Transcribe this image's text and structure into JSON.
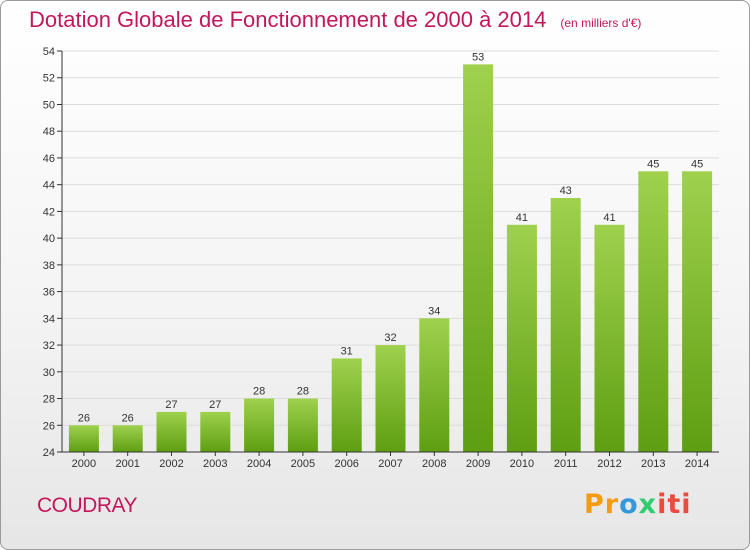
{
  "header": {
    "title": "Dotation Globale de Fonctionnement de 2000 à 2014",
    "unit": "(en milliers d'€)"
  },
  "footer": {
    "commune": "COUDRAY",
    "logo": {
      "p1": "Pr",
      "p2": "o",
      "p3": "x",
      "p4": "iti"
    }
  },
  "colors": {
    "bar_light": "#9fd14e",
    "bar_dark": "#5e9e12",
    "axis": "#333333",
    "grid": "#dddddd",
    "title": "#c2185b"
  },
  "chart_data": {
    "type": "bar",
    "title": "Dotation Globale de Fonctionnement de 2000 à 2014",
    "subtitle": "(en milliers d'€)",
    "xlabel": "",
    "ylabel": "",
    "categories": [
      "2000",
      "2001",
      "2002",
      "2003",
      "2004",
      "2005",
      "2006",
      "2007",
      "2008",
      "2009",
      "2010",
      "2011",
      "2012",
      "2013",
      "2014"
    ],
    "values": [
      26,
      26,
      27,
      27,
      28,
      28,
      31,
      32,
      34,
      53,
      41,
      43,
      41,
      45,
      45
    ],
    "ylim": [
      24,
      54
    ],
    "yticks": [
      24,
      26,
      28,
      30,
      32,
      34,
      36,
      38,
      40,
      42,
      44,
      46,
      48,
      50,
      52,
      54
    ],
    "grid": true,
    "legend": "none"
  }
}
